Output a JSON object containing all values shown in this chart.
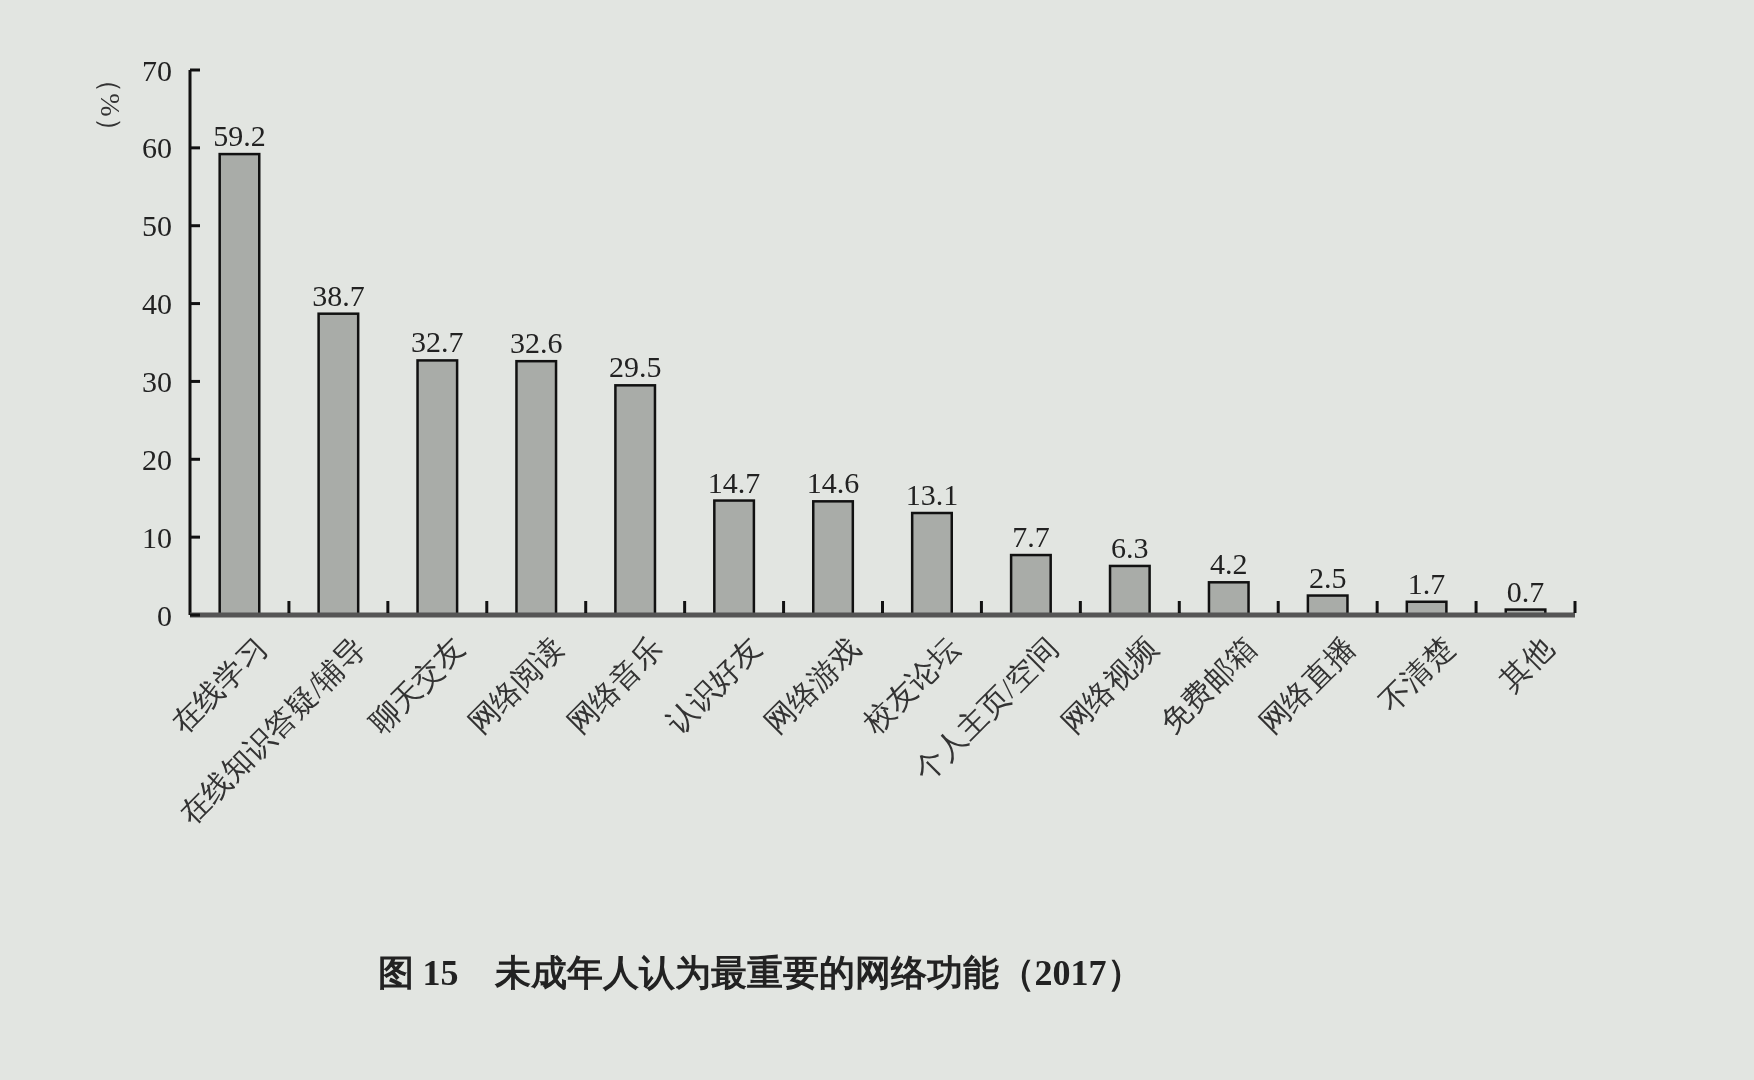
{
  "chart_data": {
    "type": "bar",
    "title": "图 15　未成年人认为最重要的网络功能（2017）",
    "ylabel": "（%）",
    "categories": [
      "在线学习",
      "在线知识答疑/辅导",
      "聊天交友",
      "网络阅读",
      "网络音乐",
      "认识好友",
      "网络游戏",
      "校友论坛",
      "个人主页/空间",
      "网络视频",
      "免费邮箱",
      "网络直播",
      "不清楚",
      "其他"
    ],
    "values": [
      59.2,
      38.7,
      32.7,
      32.6,
      29.5,
      14.7,
      14.6,
      13.1,
      7.7,
      6.3,
      4.2,
      2.5,
      1.7,
      0.7
    ],
    "color": "#a9aca8",
    "ylim": [
      0,
      70
    ],
    "yticks": [
      0,
      10,
      20,
      30,
      40,
      50,
      60,
      70
    ],
    "data_labels": true
  }
}
